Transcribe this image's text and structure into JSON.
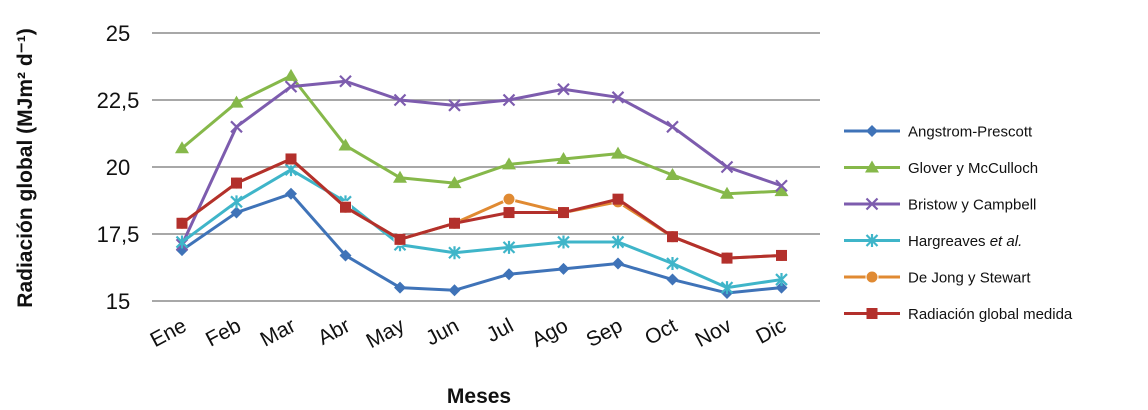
{
  "chart_data": {
    "type": "line",
    "xlabel": "Meses",
    "ylabel": "Radiación global (MJm² d⁻¹)",
    "ylim": [
      15,
      25
    ],
    "yticks": [
      15,
      17.5,
      20,
      22.5,
      25
    ],
    "ytick_labels": [
      "15",
      "17,5",
      "20",
      "22,5",
      "25"
    ],
    "grid": true,
    "legend_position": "right",
    "categories": [
      "Ene",
      "Feb",
      "Mar",
      "Abr",
      "May",
      "Jun",
      "Jul",
      "Ago",
      "Sep",
      "Oct",
      "Nov",
      "Dic"
    ],
    "series": [
      {
        "name": "Angstrom-Prescott",
        "color": "#3f73b8",
        "marker": "diamond",
        "values": [
          16.9,
          18.3,
          19.0,
          16.7,
          15.5,
          15.4,
          16.0,
          16.2,
          16.4,
          15.8,
          15.3,
          15.5
        ]
      },
      {
        "name": "Glover y McCulloch",
        "color": "#86b84a",
        "marker": "triangle",
        "values": [
          20.7,
          22.4,
          23.4,
          20.8,
          19.6,
          19.4,
          20.1,
          20.3,
          20.5,
          19.7,
          19.0,
          19.1
        ]
      },
      {
        "name": "Bristow y Campbell",
        "color": "#7d5cae",
        "marker": "x",
        "values": [
          17.1,
          21.5,
          23.0,
          23.2,
          22.5,
          22.3,
          22.5,
          22.9,
          22.6,
          21.5,
          20.0,
          19.3
        ]
      },
      {
        "name": "Hargreaves",
        "name_suffix": "et al.",
        "color": "#3fb5c9",
        "marker": "star",
        "values": [
          17.2,
          18.7,
          19.9,
          18.7,
          17.1,
          16.8,
          17.0,
          17.2,
          17.2,
          16.4,
          15.5,
          15.8
        ]
      },
      {
        "name": "De Jong y Stewart",
        "color": "#e08a32",
        "marker": "circle",
        "values": [
          17.9,
          19.4,
          20.3,
          18.5,
          17.3,
          17.9,
          18.8,
          18.3,
          18.7,
          17.4,
          16.6,
          16.7
        ]
      },
      {
        "name": "Radiación global medida",
        "color": "#b3302c",
        "marker": "square",
        "values": [
          17.9,
          19.4,
          20.3,
          18.5,
          17.3,
          17.9,
          18.3,
          18.3,
          18.8,
          17.4,
          16.6,
          16.7
        ]
      }
    ]
  }
}
